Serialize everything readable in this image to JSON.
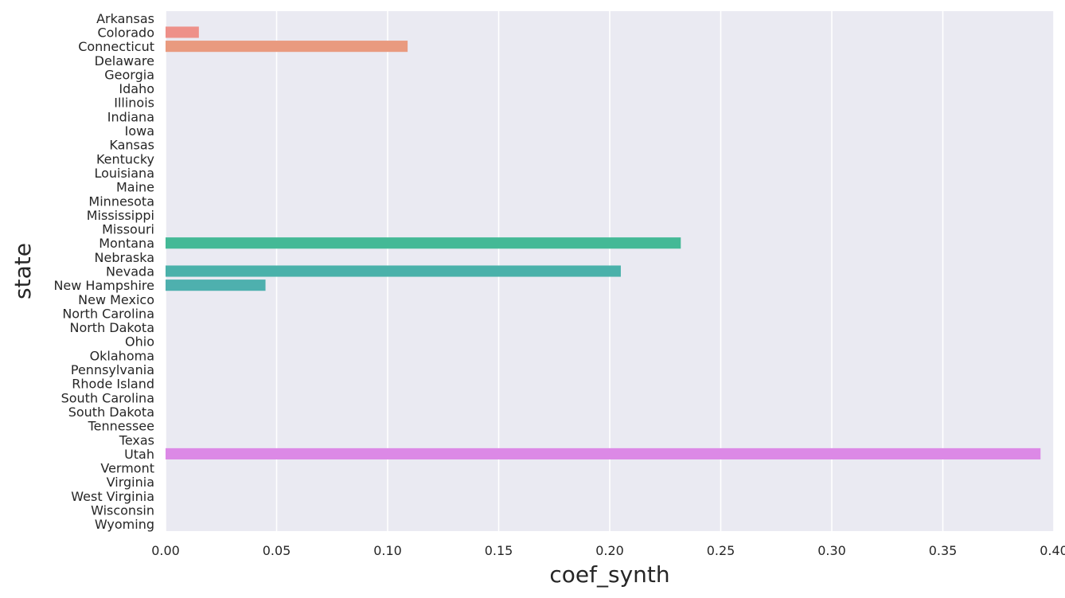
{
  "chart_data": {
    "type": "bar",
    "orientation": "horizontal",
    "xlabel": "coef_synth",
    "ylabel": "state",
    "xlim": [
      0.0,
      0.4
    ],
    "x_ticks": [
      "0.00",
      "0.05",
      "0.10",
      "0.15",
      "0.20",
      "0.25",
      "0.30",
      "0.35",
      "0.40"
    ],
    "x_tick_values": [
      0.0,
      0.05,
      0.1,
      0.15,
      0.2,
      0.25,
      0.3,
      0.35,
      0.4
    ],
    "grid": true,
    "background_color": "#eaeaf2",
    "grid_color": "#ffffff",
    "categories": [
      "Arkansas",
      "Colorado",
      "Connecticut",
      "Delaware",
      "Georgia",
      "Idaho",
      "Illinois",
      "Indiana",
      "Iowa",
      "Kansas",
      "Kentucky",
      "Louisiana",
      "Maine",
      "Minnesota",
      "Mississippi",
      "Missouri",
      "Montana",
      "Nebraska",
      "Nevada",
      "New Hampshire",
      "New Mexico",
      "North Carolina",
      "North Dakota",
      "Ohio",
      "Oklahoma",
      "Pennsylvania",
      "Rhode Island",
      "South Carolina",
      "South Dakota",
      "Tennessee",
      "Texas",
      "Utah",
      "Vermont",
      "Virginia",
      "West Virginia",
      "Wisconsin",
      "Wyoming"
    ],
    "values": [
      0.0,
      0.015,
      0.109,
      0.0,
      0.0,
      0.0,
      0.0,
      0.0,
      0.0,
      0.0,
      0.0,
      0.0,
      0.0,
      0.0,
      0.0,
      0.0,
      0.232,
      0.0,
      0.205,
      0.045,
      0.0,
      0.0,
      0.0,
      0.0,
      0.0,
      0.0,
      0.0,
      0.0,
      0.0,
      0.0,
      0.0,
      0.394,
      0.0,
      0.0,
      0.0,
      0.0,
      0.0
    ],
    "colors": [
      "#f0888d",
      "#ee9089",
      "#e99a7f",
      "#e5a277",
      "#d9ab6a",
      "#cbb163",
      "#bcb65c",
      "#aeb956",
      "#9cbd53",
      "#8ac253",
      "#71c65f",
      "#5ac96d",
      "#4bc97d",
      "#43c68e",
      "#43c39c",
      "#42bfa6",
      "#44b996",
      "#45b5a2",
      "#4ab1aa",
      "#4eb0ae",
      "#52aeb4",
      "#56abba",
      "#5ba7c2",
      "#61a2cc",
      "#699cd6",
      "#7596e0",
      "#838fe9",
      "#9287ee",
      "#a07fef",
      "#ae78ef",
      "#bd71ed",
      "#dc89e6",
      "#e086d8",
      "#e383c9",
      "#e681b9",
      "#e980a9",
      "#eb7f99"
    ]
  }
}
